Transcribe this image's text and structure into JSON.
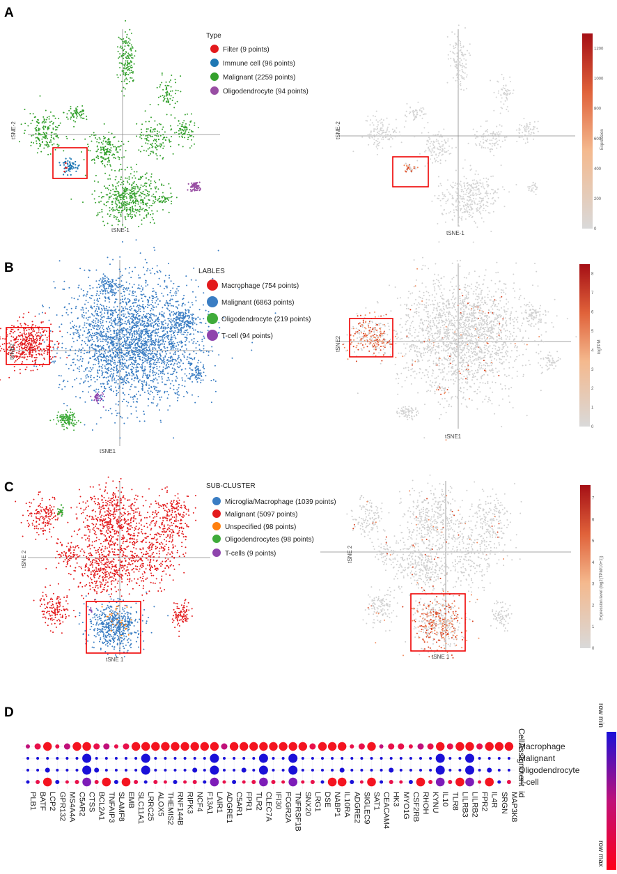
{
  "panels": {
    "A": "A",
    "B": "B",
    "C": "C",
    "D": "D"
  },
  "chart_data": [
    {
      "panel": "A-left",
      "type": "scatter",
      "xlabel": "tSNE-1",
      "ylabel": "tSNE-2",
      "legend_title": "Type",
      "highlight_box": true,
      "series": [
        {
          "name": "Filter (9 points)",
          "color": "#e31a1c",
          "points": 9
        },
        {
          "name": "Immune cell (96 points)",
          "color": "#1f78b4",
          "points": 96
        },
        {
          "name": "Malignant (2259 points)",
          "color": "#33a02c",
          "points": 2259
        },
        {
          "name": "Oligodendrocyte (94 points)",
          "color": "#984ea3",
          "points": 94
        }
      ]
    },
    {
      "panel": "A-right",
      "type": "scatter",
      "xlabel": "tSNE-1",
      "ylabel": "tSNE-2",
      "colorbar_title": "Expression",
      "colorbar_range": [
        0,
        1300
      ],
      "colorbar_ticks": [
        "0",
        "200",
        "400",
        "600",
        "800",
        "1000",
        "1200"
      ],
      "highlight_box": true
    },
    {
      "panel": "B-left",
      "type": "scatter",
      "xlabel": "tSNE1",
      "ylabel": "tSNE2",
      "legend_title": "LABLES",
      "highlight_box": true,
      "series": [
        {
          "name": "Macrophage (754 points)",
          "color": "#e31a1c",
          "points": 754
        },
        {
          "name": "Malignant (6863 points)",
          "color": "#3a7dc3",
          "points": 6863
        },
        {
          "name": "Oligodendrocyte (219 points)",
          "color": "#3fab3a",
          "points": 219
        },
        {
          "name": "T-cell (94 points)",
          "color": "#8e44ad",
          "points": 94
        }
      ]
    },
    {
      "panel": "B-right",
      "type": "scatter",
      "xlabel": "tSNE1",
      "ylabel": "tSNE2",
      "colorbar_title": "logTPM",
      "colorbar_range": [
        0,
        8.5
      ],
      "colorbar_ticks": [
        "0",
        "1",
        "2",
        "3",
        "4",
        "5",
        "6",
        "7",
        "8"
      ],
      "highlight_box": true
    },
    {
      "panel": "C-left",
      "type": "scatter",
      "xlabel": "tSNE 1",
      "ylabel": "tSNE 2",
      "legend_title": "SUB-CLUSTER",
      "highlight_box": true,
      "series": [
        {
          "name": "Microglia/Macrophage (1039 points)",
          "color": "#3a7dc3",
          "points": 1039
        },
        {
          "name": "Malignant (5097 points)",
          "color": "#e31a1c",
          "points": 5097
        },
        {
          "name": "Unspecified (98 points)",
          "color": "#ff7f0e",
          "points": 98
        },
        {
          "name": "Oligodendrocytes (98 points)",
          "color": "#3fab3a",
          "points": 98
        },
        {
          "name": "T-cells (9 points)",
          "color": "#8e44ad",
          "points": 9
        }
      ]
    },
    {
      "panel": "C-right",
      "type": "scatter",
      "xlabel": "tSNE 1",
      "ylabel": "tSNE 2",
      "colorbar_title": "Expression level (log2(TPM/10+1))",
      "colorbar_range": [
        0,
        7.6
      ],
      "colorbar_ticks": [
        "0",
        "1",
        "2",
        "3",
        "4",
        "5",
        "6",
        "7"
      ],
      "highlight_box": true
    },
    {
      "panel": "D",
      "type": "heatmap",
      "title": "CellAssignment",
      "id_label": "id",
      "rows": [
        "Macrophage",
        "Malignant",
        "Oligodendrocyte",
        "T-cell"
      ],
      "genes": [
        "PLB1",
        "BATF",
        "LCP2",
        "GPR132",
        "MS4A4A",
        "C5AR2",
        "CTSS",
        "BCL2A1",
        "TNFAIP3",
        "SLAMF8",
        "EMB",
        "SLC11A1",
        "LRRC25",
        "ALOX5",
        "THEMIS2",
        "RNF144B",
        "RIPK3",
        "NCF4",
        "F13A1",
        "LAIR1",
        "ADGRE1",
        "C5AR1",
        "FPR1",
        "TLR2",
        "CLEC7A",
        "IFI30",
        "FCGR2A",
        "TNFRSF1B",
        "SNX20",
        "LRG1",
        "DSE",
        "NABP1",
        "IL10RA",
        "ADGRE2",
        "SIGLEC9",
        "SAT1",
        "CEACAM4",
        "HK3",
        "MYO1G",
        "CSF2RB",
        "RHOH",
        "KYNU",
        "IL10",
        "TLR8",
        "LILRB3",
        "LILRB2",
        "FPR2",
        "IL4R",
        "SRGN",
        "MAP3K8"
      ],
      "color_scale": {
        "min_label": "row min",
        "max_label": "row max",
        "min_color": "#1a10d8",
        "max_color": "#ff0018"
      }
    }
  ]
}
